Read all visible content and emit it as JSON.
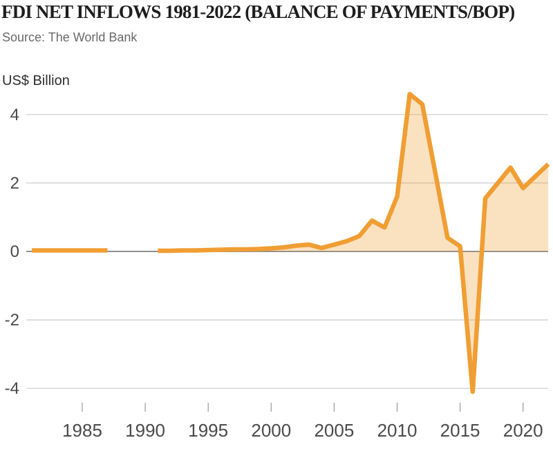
{
  "header": {
    "title": "FDI NET INFLOWS 1981-2022 (BALANCE OF PAYMENTS/BOP)",
    "source": "Source: The World Bank"
  },
  "chart_data": {
    "type": "area",
    "title": "FDI NET INFLOWS 1981-2022 (BALANCE OF PAYMENTS/BOP)",
    "subtitle": "Source: The World Bank",
    "ylabel": "US$ Billion",
    "xlabel": "",
    "x": [
      1981,
      1982,
      1983,
      1984,
      1985,
      1986,
      1987,
      1988,
      1989,
      1990,
      1991,
      1992,
      1993,
      1994,
      1995,
      1996,
      1997,
      1998,
      1999,
      2000,
      2001,
      2002,
      2003,
      2004,
      2005,
      2006,
      2007,
      2008,
      2009,
      2010,
      2011,
      2012,
      2013,
      2014,
      2015,
      2016,
      2017,
      2018,
      2019,
      2020,
      2021,
      2022
    ],
    "values": [
      0.03,
      0.03,
      0.03,
      0.03,
      0.03,
      0.03,
      0.03,
      null,
      null,
      null,
      0.02,
      0.02,
      0.03,
      0.03,
      0.04,
      0.05,
      0.06,
      0.06,
      0.07,
      0.09,
      0.12,
      0.17,
      0.2,
      0.1,
      0.2,
      0.3,
      0.45,
      0.9,
      0.7,
      1.6,
      4.6,
      4.3,
      2.35,
      0.4,
      0.15,
      -4.1,
      1.55,
      2.0,
      2.45,
      1.85,
      2.2,
      2.55
    ],
    "missing_years": [
      1988,
      1989,
      1990
    ],
    "y_ticks": [
      4,
      2,
      0,
      -2,
      -4
    ],
    "x_ticks": [
      1985,
      1990,
      1995,
      2000,
      2005,
      2010,
      2015,
      2020
    ],
    "ylim": [
      -4.6,
      4.8
    ],
    "xlim": [
      1981,
      2022
    ],
    "grid": "horizontal",
    "legend": "none",
    "line_color": "#F09E33",
    "fill_color": "rgba(240,158,51,0.3)",
    "grid_color": "#cbcbcb",
    "zero_line_color": "#8f8f8f",
    "tick_color": "#999999",
    "axis_label_color": "#4a4a4a"
  }
}
